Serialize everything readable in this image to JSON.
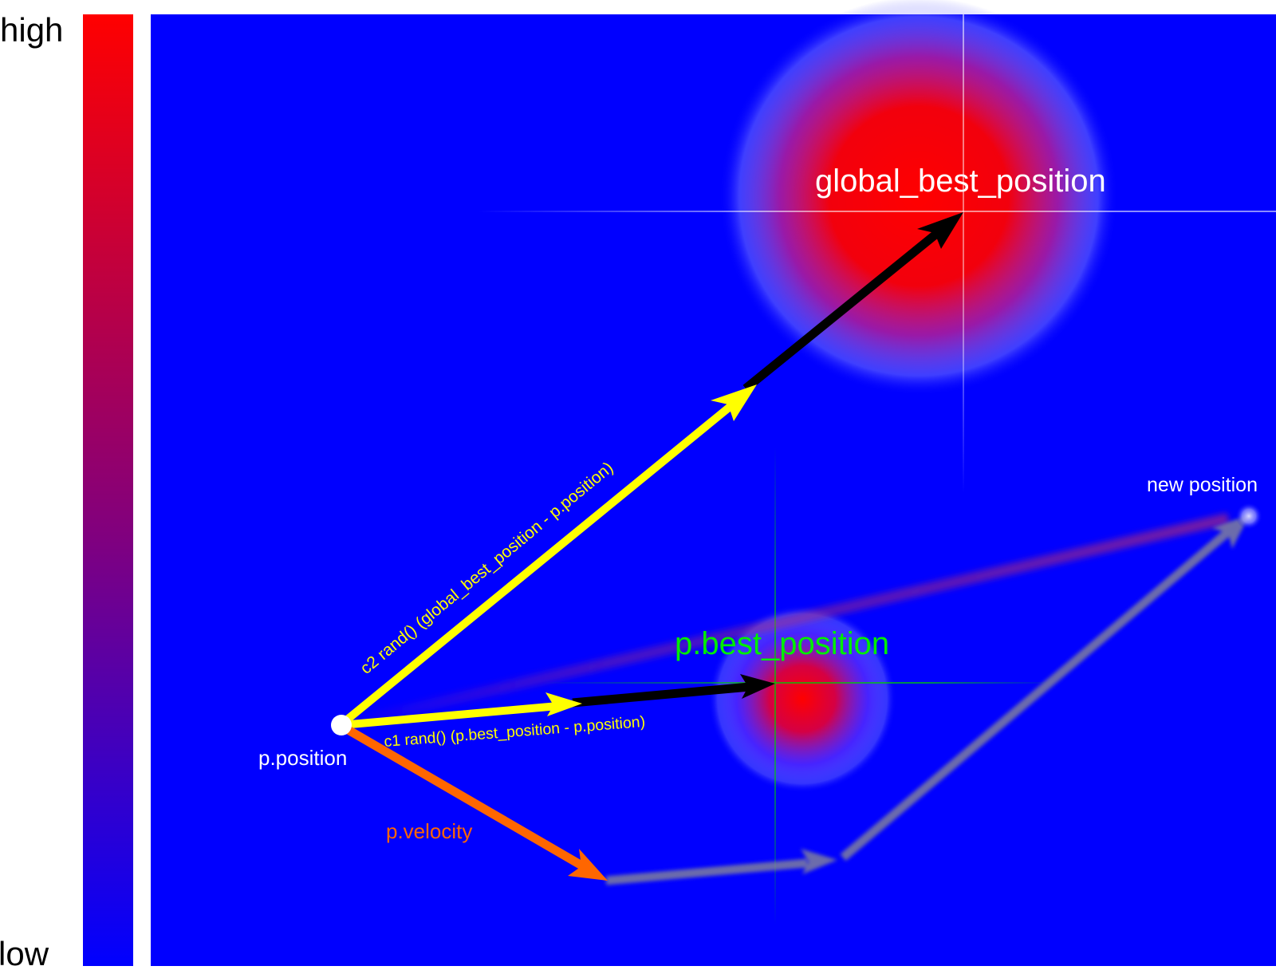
{
  "scale": {
    "high_label": "high",
    "low_label": "low",
    "high_color": "#ff0000",
    "low_color": "#0000ff"
  },
  "field_color": "#0000ff",
  "labels": {
    "global_best": "global_best_position",
    "personal_best": "p.best_position",
    "position": "p.position",
    "new_position": "new position",
    "velocity": "p.velocity",
    "social_term": "c2 rand() (global_best_position - p.position)",
    "cognitive_term": "c1 rand() (p.best_position - p.position)"
  },
  "colors": {
    "social_vector": "#ffff00",
    "cognitive_vector": "#ffff00",
    "velocity_vector": "#ff6600",
    "full_vector": "#000000",
    "personal_best_label": "#00ee00",
    "crosshair_global": "#ffffff",
    "crosshair_personal": "#00cc00"
  }
}
